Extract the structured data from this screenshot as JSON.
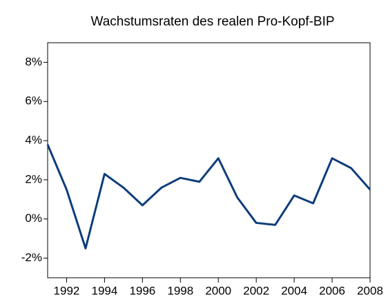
{
  "chart_data": {
    "type": "line",
    "title": "Wachstumsraten des realen Pro-Kopf-BIP",
    "x": [
      1991,
      1992,
      1993,
      1994,
      1995,
      1996,
      1997,
      1998,
      1999,
      2000,
      2001,
      2002,
      2003,
      2004,
      2005,
      2006,
      2007,
      2008
    ],
    "series": [
      {
        "color": "#0d3d7a",
        "values": [
          3.8,
          1.5,
          -1.5,
          2.3,
          1.6,
          0.7,
          1.6,
          2.1,
          1.9,
          3.1,
          1.1,
          -0.2,
          -0.3,
          1.2,
          0.8,
          3.1,
          2.6,
          1.5
        ]
      }
    ],
    "xlim": [
      1991,
      2008
    ],
    "xticks": [
      1992,
      1994,
      1996,
      1998,
      2000,
      2002,
      2004,
      2006,
      2008
    ],
    "ylim": [
      -3,
      9
    ],
    "yticks": [
      {
        "value": -2,
        "label": "-2%"
      },
      {
        "value": 0,
        "label": "0%"
      },
      {
        "value": 2,
        "label": "2%"
      },
      {
        "value": 4,
        "label": "4%"
      },
      {
        "value": 6,
        "label": "6%"
      },
      {
        "value": 8,
        "label": "8%"
      }
    ]
  }
}
